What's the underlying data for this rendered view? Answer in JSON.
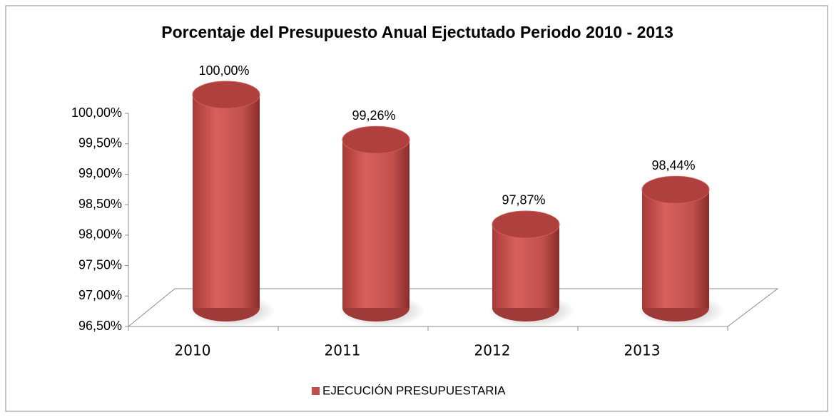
{
  "chart_data": {
    "type": "bar3d",
    "title": "Porcentaje del Presupuesto Anual Ejectutado Periodo 2010 - 2013",
    "categories": [
      "2010",
      "2011",
      "2012",
      "2013"
    ],
    "series": [
      {
        "name": "EJECUCIÓN PRESUPUESTARIA",
        "color": "#c0504d",
        "values": [
          100,
          99.26,
          97.87,
          98.44
        ],
        "value_labels": [
          "100,00%",
          "99,26%",
          "97,87%",
          "98,44%"
        ]
      }
    ],
    "ylim": [
      96.5,
      100
    ],
    "yticks": [
      {
        "value": 96.5,
        "label": "96,50%"
      },
      {
        "value": 97,
        "label": "97,00%"
      },
      {
        "value": 97.5,
        "label": "97,50%"
      },
      {
        "value": 98,
        "label": "98,00%"
      },
      {
        "value": 98.5,
        "label": "98,50%"
      },
      {
        "value": 99,
        "label": "99,00%"
      },
      {
        "value": 99.5,
        "label": "99,50%"
      },
      {
        "value": 100,
        "label": "100,00%"
      }
    ],
    "legend": "bottom"
  }
}
